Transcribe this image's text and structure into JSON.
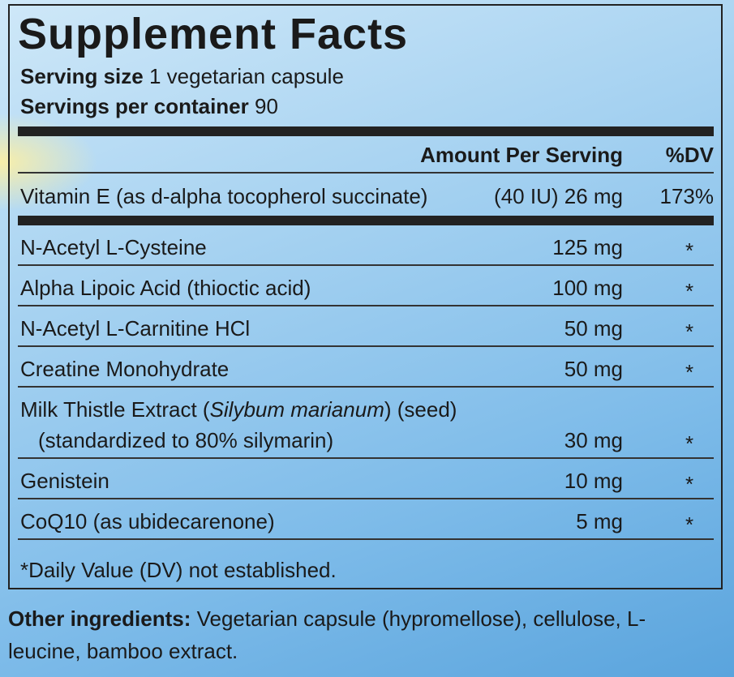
{
  "title": "Supplement Facts",
  "serving_size": {
    "label": "Serving size",
    "value": "1 vegetarian capsule"
  },
  "servings_per_container": {
    "label": "Servings per container",
    "value": "90"
  },
  "header": {
    "amount": "Amount Per Serving",
    "dv": "%DV"
  },
  "vitamin_row": {
    "name": "Vitamin E (as d-alpha tocopherol succinate)",
    "amount": "(40 IU) 26 mg",
    "dv": "173%"
  },
  "rows": [
    {
      "name": [
        "N-Acetyl L-Cysteine"
      ],
      "amount": "125 mg",
      "dv": "*"
    },
    {
      "name": [
        "Alpha Lipoic Acid (thioctic acid)"
      ],
      "amount": "100 mg",
      "dv": "*"
    },
    {
      "name": [
        "N-Acetyl L-Carnitine HCl"
      ],
      "amount": "50 mg",
      "dv": "*"
    },
    {
      "name": [
        "Creatine Monohydrate"
      ],
      "amount": "50 mg",
      "dv": "*"
    },
    {
      "name": [
        "Milk Thistle Extract (",
        "Silybum marianum",
        ") (seed)"
      ],
      "subline": "(standardized to 80% silymarin)",
      "amount": "30 mg",
      "dv": "*"
    },
    {
      "name": [
        "Genistein"
      ],
      "amount": "10 mg",
      "dv": "*"
    },
    {
      "name": [
        "CoQ10 (as ubidecarenone)"
      ],
      "amount": "5 mg",
      "dv": "*"
    }
  ],
  "footnote": "*Daily Value (DV) not established.",
  "other_ingredients": {
    "label": "Other ingredients:",
    "text": "Vegetarian capsule (hypromellose), cellulose, L-leucine, bamboo extract."
  }
}
